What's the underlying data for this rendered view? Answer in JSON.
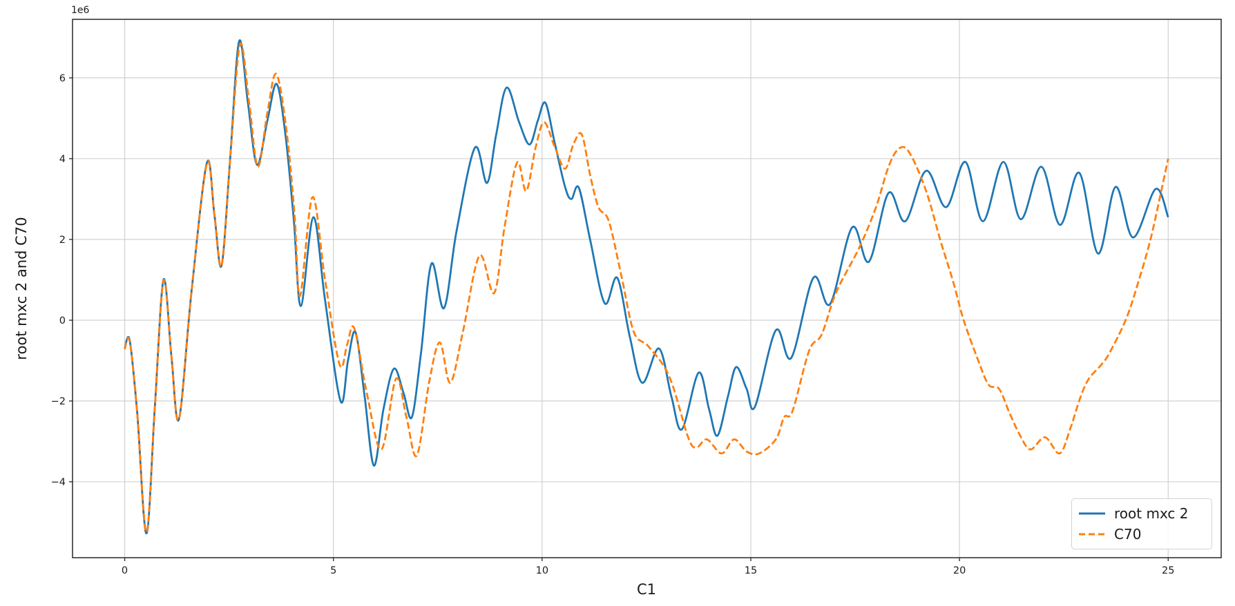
{
  "figure": {
    "offset_text": "1e6",
    "xlabel": "C1",
    "ylabel": "root mxc 2 and C70"
  },
  "legend": {
    "position": "lower right",
    "entries": [
      {
        "label": "root mxc 2",
        "color": "#1f77b4",
        "style": "solid"
      },
      {
        "label": "C70",
        "color": "#ff7f0e",
        "style": "dashed"
      }
    ]
  },
  "chart_data": {
    "type": "line",
    "title": "",
    "xlabel": "C1",
    "ylabel": "root mxc 2 and C70",
    "y_unit_multiplier": "1e6",
    "xlim": [
      -1.25,
      26.27
    ],
    "ylim_e6": [
      -5.88,
      7.45
    ],
    "xticks": [
      0,
      5,
      10,
      15,
      20,
      25
    ],
    "yticks_e6": [
      -4,
      -2,
      0,
      2,
      4,
      6
    ],
    "grid": true,
    "grid_color": "#cccccc",
    "spine_color": "#262626",
    "legend_position": "lower right",
    "series": [
      {
        "name": "root mxc 2",
        "color": "#1f77b4",
        "line_style": "solid",
        "line_width": 2.8,
        "points_e6": [
          [
            0,
            -0.7
          ],
          [
            0.12,
            -0.5
          ],
          [
            0.3,
            -2.3
          ],
          [
            0.52,
            -5.28
          ],
          [
            0.72,
            -2.2
          ],
          [
            0.93,
            1.0
          ],
          [
            1.12,
            -0.9
          ],
          [
            1.3,
            -2.45
          ],
          [
            1.6,
            0.7
          ],
          [
            1.97,
            3.9
          ],
          [
            2.15,
            2.6
          ],
          [
            2.32,
            1.35
          ],
          [
            2.52,
            3.9
          ],
          [
            2.74,
            6.9
          ],
          [
            2.95,
            5.4
          ],
          [
            3.17,
            3.85
          ],
          [
            3.42,
            4.95
          ],
          [
            3.64,
            5.85
          ],
          [
            3.85,
            4.6
          ],
          [
            4.05,
            2.5
          ],
          [
            4.22,
            0.35
          ],
          [
            4.52,
            2.55
          ],
          [
            4.8,
            0.5
          ],
          [
            5.17,
            -2.0
          ],
          [
            5.35,
            -1.0
          ],
          [
            5.53,
            -0.3
          ],
          [
            5.75,
            -1.9
          ],
          [
            5.97,
            -3.6
          ],
          [
            6.2,
            -2.2
          ],
          [
            6.45,
            -1.2
          ],
          [
            6.68,
            -1.8
          ],
          [
            6.88,
            -2.4
          ],
          [
            7.1,
            -0.8
          ],
          [
            7.35,
            1.4
          ],
          [
            7.65,
            0.3
          ],
          [
            7.95,
            2.2
          ],
          [
            8.39,
            4.27
          ],
          [
            8.68,
            3.4
          ],
          [
            8.9,
            4.6
          ],
          [
            9.15,
            5.76
          ],
          [
            9.45,
            4.9
          ],
          [
            9.7,
            4.35
          ],
          [
            9.9,
            4.95
          ],
          [
            10.08,
            5.38
          ],
          [
            10.3,
            4.4
          ],
          [
            10.55,
            3.3
          ],
          [
            10.7,
            3.0
          ],
          [
            10.88,
            3.28
          ],
          [
            11.15,
            2.0
          ],
          [
            11.5,
            0.42
          ],
          [
            11.8,
            1.05
          ],
          [
            12.1,
            -0.4
          ],
          [
            12.4,
            -1.55
          ],
          [
            12.8,
            -0.7
          ],
          [
            13.1,
            -1.9
          ],
          [
            13.35,
            -2.7
          ],
          [
            13.75,
            -1.3
          ],
          [
            14.0,
            -2.2
          ],
          [
            14.2,
            -2.86
          ],
          [
            14.45,
            -1.9
          ],
          [
            14.65,
            -1.16
          ],
          [
            14.9,
            -1.7
          ],
          [
            15.1,
            -2.14
          ],
          [
            15.6,
            -0.25
          ],
          [
            15.97,
            -0.93
          ],
          [
            16.5,
            1.05
          ],
          [
            16.9,
            0.4
          ],
          [
            17.43,
            2.3
          ],
          [
            17.83,
            1.45
          ],
          [
            18.3,
            3.15
          ],
          [
            18.7,
            2.45
          ],
          [
            19.2,
            3.7
          ],
          [
            19.68,
            2.8
          ],
          [
            20.14,
            3.92
          ],
          [
            20.56,
            2.45
          ],
          [
            21.05,
            3.92
          ],
          [
            21.47,
            2.5
          ],
          [
            21.96,
            3.8
          ],
          [
            22.41,
            2.36
          ],
          [
            22.87,
            3.65
          ],
          [
            23.32,
            1.65
          ],
          [
            23.74,
            3.3
          ],
          [
            24.16,
            2.05
          ],
          [
            24.7,
            3.25
          ],
          [
            25,
            2.55
          ]
        ]
      },
      {
        "name": "C70",
        "color": "#ff7f0e",
        "line_style": "dashed",
        "line_width": 2.8,
        "points_e6": [
          [
            0,
            -0.72
          ],
          [
            0.12,
            -0.52
          ],
          [
            0.3,
            -2.3
          ],
          [
            0.52,
            -5.25
          ],
          [
            0.72,
            -2.2
          ],
          [
            0.93,
            0.98
          ],
          [
            1.12,
            -0.9
          ],
          [
            1.3,
            -2.45
          ],
          [
            1.6,
            0.7
          ],
          [
            1.97,
            3.88
          ],
          [
            2.15,
            2.6
          ],
          [
            2.32,
            1.35
          ],
          [
            2.52,
            3.9
          ],
          [
            2.76,
            6.82
          ],
          [
            2.98,
            5.4
          ],
          [
            3.19,
            3.8
          ],
          [
            3.42,
            5.15
          ],
          [
            3.63,
            6.1
          ],
          [
            3.87,
            4.75
          ],
          [
            4.07,
            2.6
          ],
          [
            4.2,
            0.6
          ],
          [
            4.5,
            3.05
          ],
          [
            4.8,
            1.0
          ],
          [
            5.15,
            -1.1
          ],
          [
            5.33,
            -0.6
          ],
          [
            5.5,
            -0.2
          ],
          [
            5.8,
            -1.8
          ],
          [
            6.15,
            -3.2
          ],
          [
            6.5,
            -1.45
          ],
          [
            6.75,
            -2.4
          ],
          [
            7.0,
            -3.35
          ],
          [
            7.3,
            -1.5
          ],
          [
            7.55,
            -0.55
          ],
          [
            7.8,
            -1.55
          ],
          [
            8.1,
            -0.3
          ],
          [
            8.5,
            1.6
          ],
          [
            8.85,
            0.67
          ],
          [
            9.1,
            2.3
          ],
          [
            9.4,
            3.9
          ],
          [
            9.62,
            3.2
          ],
          [
            9.85,
            4.3
          ],
          [
            10.05,
            4.9
          ],
          [
            10.3,
            4.3
          ],
          [
            10.55,
            3.75
          ],
          [
            10.75,
            4.35
          ],
          [
            10.95,
            4.6
          ],
          [
            11.15,
            3.6
          ],
          [
            11.35,
            2.8
          ],
          [
            11.6,
            2.45
          ],
          [
            11.9,
            1.1
          ],
          [
            12.2,
            -0.3
          ],
          [
            12.55,
            -0.65
          ],
          [
            13.05,
            -1.4
          ],
          [
            13.5,
            -2.9
          ],
          [
            13.7,
            -3.15
          ],
          [
            13.95,
            -2.95
          ],
          [
            14.3,
            -3.3
          ],
          [
            14.6,
            -2.95
          ],
          [
            14.9,
            -3.25
          ],
          [
            15.2,
            -3.3
          ],
          [
            15.6,
            -2.95
          ],
          [
            15.8,
            -2.4
          ],
          [
            16.0,
            -2.25
          ],
          [
            16.4,
            -0.75
          ],
          [
            16.7,
            -0.35
          ],
          [
            17.05,
            0.7
          ],
          [
            17.6,
            1.8
          ],
          [
            18.0,
            2.8
          ],
          [
            18.3,
            3.8
          ],
          [
            18.55,
            4.25
          ],
          [
            18.8,
            4.15
          ],
          [
            19.2,
            3.2
          ],
          [
            19.55,
            1.95
          ],
          [
            19.85,
            0.95
          ],
          [
            20.1,
            0.0
          ],
          [
            20.45,
            -1.0
          ],
          [
            20.7,
            -1.6
          ],
          [
            20.95,
            -1.7
          ],
          [
            21.2,
            -2.3
          ],
          [
            21.45,
            -2.85
          ],
          [
            21.7,
            -3.2
          ],
          [
            22.05,
            -2.9
          ],
          [
            22.4,
            -3.3
          ],
          [
            22.65,
            -2.7
          ],
          [
            22.9,
            -1.9
          ],
          [
            23.1,
            -1.45
          ],
          [
            23.4,
            -1.1
          ],
          [
            23.6,
            -0.8
          ],
          [
            24.0,
            0.05
          ],
          [
            24.3,
            1.0
          ],
          [
            24.6,
            2.1
          ],
          [
            25,
            4.0
          ]
        ]
      }
    ]
  }
}
